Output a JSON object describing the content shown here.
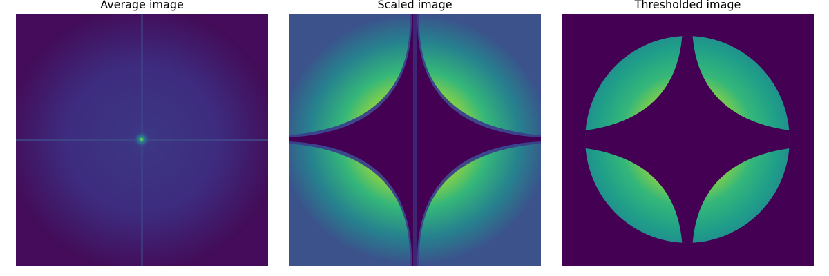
{
  "figure": {
    "panels": [
      {
        "title": "Average image",
        "colormap": "viridis"
      },
      {
        "title": "Scaled image",
        "colormap": "viridis"
      },
      {
        "title": "Thresholded image",
        "colormap": "viridis"
      }
    ]
  }
}
